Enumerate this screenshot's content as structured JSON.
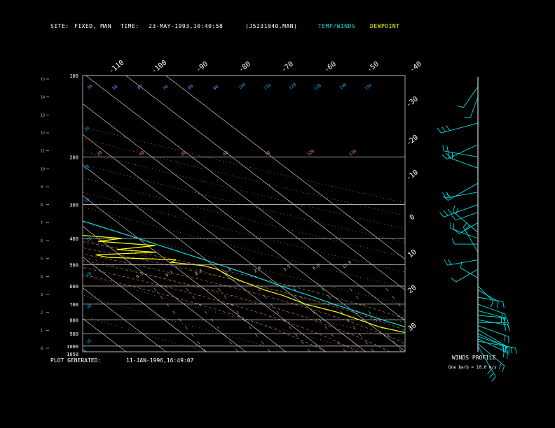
{
  "header": {
    "site_label": "SITE:",
    "site_value": "FIXED, MAN",
    "time_label": "TIME:",
    "time_value": "23-MAY-1993,10:40:58",
    "file_id": "(J5231040.MAN)",
    "legend_temp": "TEMP/WINDS",
    "legend_dew": "DEWPOINT"
  },
  "footer": {
    "generated_label": "PLOT GENERATED:",
    "generated_value": "11-JAN-1996,16:49:07",
    "winds_profile_title": "WINDS PROFILE",
    "winds_profile_note": "One barb = 10.0 m/s"
  },
  "colors": {
    "temperature": "#00e0e0",
    "dewpoint": "#ffff00",
    "grid": "#c8c8c8",
    "dry_adiabat": "#ff9955",
    "moist_adiabat": "#e08a60",
    "mixing_ratio": "#8c8cff",
    "background": "#000000"
  },
  "chart_data": {
    "type": "line",
    "chart_kind": "skew-T log-P sounding",
    "pressure_levels": [
      1050,
      1000,
      900,
      800,
      700,
      600,
      500,
      400,
      300,
      200,
      100
    ],
    "pressure_labels": [
      "1050",
      "1000",
      "900",
      "800",
      "700",
      "600",
      "500",
      "400",
      "300",
      "200",
      "100"
    ],
    "ylim_hpa": [
      1050,
      100
    ],
    "altitude_ticks_km": [
      "0",
      "1",
      "2",
      "3",
      "4",
      "5",
      "6",
      "7",
      "8",
      "9",
      "10",
      "11",
      "12",
      "13",
      "14",
      "15"
    ],
    "top_temperature_labels": [
      "-110",
      "-100",
      "-90",
      "-80",
      "-70",
      "-60",
      "-50",
      "-40"
    ],
    "right_temperature_labels": [
      "-30",
      "-20",
      "-10",
      "0",
      "10",
      "20",
      "30"
    ],
    "isotherms_c": [
      -110,
      -100,
      -90,
      -80,
      -70,
      -60,
      -50,
      -40,
      -30,
      -20,
      -10,
      0,
      10,
      20,
      30,
      40
    ],
    "mixing_ratio_labels": [
      "0.1",
      "0.2",
      "0.4",
      "1.0",
      "2.0",
      "3.5",
      "6.0",
      "12.0"
    ],
    "theta_labels_top": [
      "30",
      "50",
      "60",
      "70",
      "80",
      "90",
      "100",
      "110",
      "120",
      "130",
      "140",
      "150"
    ],
    "theta_labels_mid": [
      "30",
      "40",
      "50",
      "60",
      "70",
      "120",
      "130"
    ],
    "left_theta_labels": [
      "30",
      "20",
      "10",
      "-10",
      "-20",
      "-30",
      "-35"
    ],
    "series": [
      {
        "name": "TEMP/WINDS",
        "color": "#00e0e0",
        "points": [
          [
            1000,
            28
          ],
          [
            980,
            25.8
          ],
          [
            950,
            23.6
          ],
          [
            925,
            22
          ],
          [
            900,
            20.8
          ],
          [
            850,
            18
          ],
          [
            800,
            14.5
          ],
          [
            750,
            11.2
          ],
          [
            700,
            7.5
          ],
          [
            650,
            4.2
          ],
          [
            600,
            0.2
          ],
          [
            550,
            -3.5
          ],
          [
            500,
            -8.2
          ],
          [
            450,
            -13.8
          ],
          [
            400,
            -20
          ],
          [
            350,
            -27.4
          ],
          [
            300,
            -36.2
          ],
          [
            250,
            -46
          ],
          [
            200,
            -56.5
          ],
          [
            175,
            -61
          ],
          [
            160,
            -63
          ],
          [
            150,
            -64.5
          ],
          [
            130,
            -67
          ],
          [
            120,
            -65
          ],
          [
            110,
            -63
          ],
          [
            100,
            -62
          ]
        ]
      },
      {
        "name": "DEWPOINT",
        "color": "#ffff00",
        "points": [
          [
            1000,
            20
          ],
          [
            980,
            19.6
          ],
          [
            950,
            18.8
          ],
          [
            900,
            17
          ],
          [
            850,
            11.5
          ],
          [
            800,
            8.8
          ],
          [
            750,
            5.8
          ],
          [
            700,
            0.5
          ],
          [
            650,
            -2.4
          ],
          [
            620,
            -5.2
          ],
          [
            600,
            -6.5
          ],
          [
            560,
            -9
          ],
          [
            520,
            -10.3
          ],
          [
            505,
            -12.4
          ],
          [
            490,
            -19.6
          ],
          [
            480,
            -17.5
          ],
          [
            470,
            -33.8
          ],
          [
            460,
            -36
          ],
          [
            450,
            -20
          ],
          [
            440,
            -29
          ],
          [
            425,
            -18
          ],
          [
            410,
            -31
          ],
          [
            400,
            -24
          ],
          [
            390,
            -33
          ],
          [
            380,
            -38
          ],
          [
            360,
            -35
          ],
          [
            350,
            -46
          ],
          [
            340,
            -40
          ],
          [
            330,
            -45
          ],
          [
            315,
            -58
          ],
          [
            305,
            -55
          ],
          [
            295,
            -51
          ],
          [
            280,
            -55
          ],
          [
            265,
            -54
          ],
          [
            250,
            -60
          ],
          [
            230,
            -62
          ],
          [
            200,
            -67
          ],
          [
            180,
            -73
          ],
          [
            160,
            -76
          ],
          [
            150,
            -77
          ],
          [
            140,
            -74
          ],
          [
            130,
            -71
          ],
          [
            110,
            -69
          ],
          [
            100,
            -69
          ]
        ]
      }
    ],
    "wind_profile": {
      "barb_unit": "10.0 m/s per barb",
      "levels_hpa": [
        1000,
        980,
        960,
        940,
        920,
        900,
        870,
        840,
        820,
        800,
        770,
        740,
        700,
        660,
        620,
        600,
        560,
        520,
        480,
        450,
        420,
        400,
        380,
        350,
        320,
        300,
        270,
        250,
        220,
        200,
        180,
        150,
        120,
        110
      ],
      "direction_deg": [
        150,
        130,
        100,
        115,
        110,
        115,
        120,
        110,
        90,
        100,
        95,
        105,
        110,
        100,
        120,
        135,
        300,
        240,
        260,
        330,
        270,
        290,
        310,
        240,
        250,
        250,
        260,
        240,
        290,
        280,
        245,
        255,
        200,
        215
      ],
      "speed_ms": [
        25,
        24,
        28,
        22,
        20,
        24,
        22,
        22,
        18,
        20,
        18,
        16,
        18,
        14,
        12,
        10,
        8,
        14,
        20,
        18,
        12,
        18,
        22,
        10,
        12,
        26,
        22,
        24,
        20,
        24,
        24,
        28,
        10,
        14
      ]
    }
  }
}
